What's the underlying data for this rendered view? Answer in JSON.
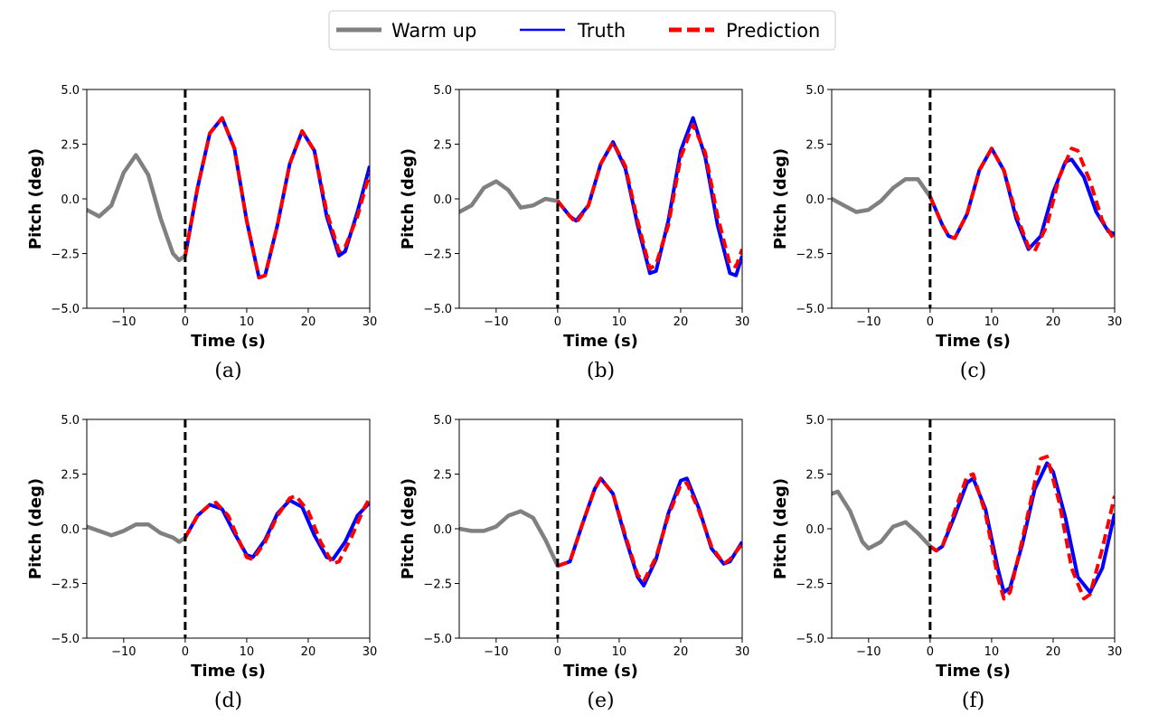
{
  "legend": {
    "entries": [
      {
        "label": "Warm up",
        "color": "#808080",
        "style": "solid-thick"
      },
      {
        "label": "Truth",
        "color": "#0000ff",
        "style": "solid"
      },
      {
        "label": "Prediction",
        "color": "#ff0000",
        "style": "dashed"
      }
    ],
    "placement": "top-center"
  },
  "chart_data": [
    {
      "type": "line",
      "caption": "(a)",
      "xlabel": "Time (s)",
      "ylabel": "Pitch (deg)",
      "xlim": [
        -16,
        30
      ],
      "ylim": [
        -5,
        5
      ],
      "xticks": [
        -10,
        0,
        10,
        20,
        30
      ],
      "yticks": [
        -5.0,
        -2.5,
        0.0,
        2.5,
        5.0
      ],
      "warmup": [
        [
          -16,
          -0.5
        ],
        [
          -14,
          -0.8
        ],
        [
          -12,
          -0.3
        ],
        [
          -10,
          1.2
        ],
        [
          -8,
          2.0
        ],
        [
          -6,
          1.1
        ],
        [
          -4,
          -0.9
        ],
        [
          -2,
          -2.5
        ],
        [
          -1,
          -2.8
        ],
        [
          0,
          -2.6
        ]
      ],
      "truth": [
        [
          0,
          -2.6
        ],
        [
          2,
          0.5
        ],
        [
          4,
          3.0
        ],
        [
          6,
          3.7
        ],
        [
          8,
          2.3
        ],
        [
          10,
          -1.0
        ],
        [
          12,
          -3.6
        ],
        [
          13,
          -3.5
        ],
        [
          15,
          -1.2
        ],
        [
          17,
          1.6
        ],
        [
          19,
          3.1
        ],
        [
          21,
          2.2
        ],
        [
          23,
          -0.8
        ],
        [
          25,
          -2.6
        ],
        [
          26,
          -2.4
        ],
        [
          28,
          -0.6
        ],
        [
          30,
          1.5
        ]
      ],
      "prediction": [
        [
          0,
          -2.6
        ],
        [
          2,
          0.5
        ],
        [
          4,
          3.0
        ],
        [
          6,
          3.7
        ],
        [
          8,
          2.3
        ],
        [
          10,
          -1.0
        ],
        [
          12,
          -3.6
        ],
        [
          13,
          -3.5
        ],
        [
          15,
          -1.2
        ],
        [
          17,
          1.6
        ],
        [
          19,
          3.1
        ],
        [
          21,
          2.2
        ],
        [
          23,
          -0.6
        ],
        [
          25,
          -2.4
        ],
        [
          26,
          -2.2
        ],
        [
          28,
          -0.8
        ],
        [
          30,
          1.2
        ]
      ],
      "divider_x": 0,
      "grid": false
    },
    {
      "type": "line",
      "caption": "(b)",
      "xlabel": "Time (s)",
      "ylabel": "Pitch (deg)",
      "xlim": [
        -16,
        30
      ],
      "ylim": [
        -5,
        5
      ],
      "xticks": [
        -10,
        0,
        10,
        20,
        30
      ],
      "yticks": [
        -5.0,
        -2.5,
        0.0,
        2.5,
        5.0
      ],
      "warmup": [
        [
          -16,
          -0.6
        ],
        [
          -14,
          -0.3
        ],
        [
          -12,
          0.5
        ],
        [
          -10,
          0.8
        ],
        [
          -8,
          0.4
        ],
        [
          -6,
          -0.4
        ],
        [
          -4,
          -0.3
        ],
        [
          -2,
          0.0
        ],
        [
          0,
          -0.1
        ]
      ],
      "truth": [
        [
          0,
          -0.1
        ],
        [
          2,
          -0.8
        ],
        [
          3,
          -1.0
        ],
        [
          5,
          -0.3
        ],
        [
          7,
          1.6
        ],
        [
          9,
          2.6
        ],
        [
          11,
          1.4
        ],
        [
          13,
          -1.2
        ],
        [
          15,
          -3.4
        ],
        [
          16,
          -3.3
        ],
        [
          18,
          -1.0
        ],
        [
          20,
          2.2
        ],
        [
          22,
          3.7
        ],
        [
          24,
          1.9
        ],
        [
          26,
          -1.2
        ],
        [
          28,
          -3.4
        ],
        [
          29,
          -3.5
        ],
        [
          30,
          -2.6
        ]
      ],
      "prediction": [
        [
          0,
          -0.1
        ],
        [
          2,
          -0.8
        ],
        [
          3,
          -1.1
        ],
        [
          5,
          -0.3
        ],
        [
          7,
          1.6
        ],
        [
          9,
          2.6
        ],
        [
          11,
          1.5
        ],
        [
          13,
          -1.0
        ],
        [
          15,
          -3.2
        ],
        [
          16,
          -3.0
        ],
        [
          18,
          -1.2
        ],
        [
          20,
          1.9
        ],
        [
          22,
          3.4
        ],
        [
          24,
          2.1
        ],
        [
          26,
          -0.8
        ],
        [
          28,
          -3.0
        ],
        [
          29,
          -3.1
        ],
        [
          30,
          -2.3
        ]
      ],
      "divider_x": 0,
      "grid": false
    },
    {
      "type": "line",
      "caption": "(c)",
      "xlabel": "Time (s)",
      "ylabel": "Pitch (deg)",
      "xlim": [
        -16,
        30
      ],
      "ylim": [
        -5,
        5
      ],
      "xticks": [
        -10,
        0,
        10,
        20,
        30
      ],
      "yticks": [
        -5.0,
        -2.5,
        0.0,
        2.5,
        5.0
      ],
      "warmup": [
        [
          -16,
          0.0
        ],
        [
          -14,
          -0.3
        ],
        [
          -12,
          -0.6
        ],
        [
          -10,
          -0.5
        ],
        [
          -8,
          -0.1
        ],
        [
          -6,
          0.5
        ],
        [
          -4,
          0.9
        ],
        [
          -2,
          0.9
        ],
        [
          0,
          0.1
        ]
      ],
      "truth": [
        [
          0,
          0.1
        ],
        [
          2,
          -1.2
        ],
        [
          3,
          -1.7
        ],
        [
          4,
          -1.8
        ],
        [
          6,
          -0.7
        ],
        [
          8,
          1.3
        ],
        [
          10,
          2.3
        ],
        [
          12,
          1.3
        ],
        [
          14,
          -0.9
        ],
        [
          16,
          -2.3
        ],
        [
          18,
          -1.7
        ],
        [
          20,
          0.3
        ],
        [
          22,
          1.7
        ],
        [
          23,
          1.8
        ],
        [
          25,
          1.0
        ],
        [
          27,
          -0.6
        ],
        [
          29,
          -1.5
        ],
        [
          30,
          -1.6
        ]
      ],
      "prediction": [
        [
          0,
          0.1
        ],
        [
          2,
          -1.2
        ],
        [
          3,
          -1.7
        ],
        [
          4,
          -1.8
        ],
        [
          6,
          -0.7
        ],
        [
          8,
          1.3
        ],
        [
          10,
          2.3
        ],
        [
          12,
          1.3
        ],
        [
          14,
          -0.7
        ],
        [
          16,
          -2.2
        ],
        [
          17,
          -2.4
        ],
        [
          19,
          -1.2
        ],
        [
          21,
          1.0
        ],
        [
          23,
          2.3
        ],
        [
          24,
          2.2
        ],
        [
          26,
          0.8
        ],
        [
          28,
          -1.0
        ],
        [
          30,
          -1.9
        ]
      ],
      "divider_x": 0,
      "grid": false
    },
    {
      "type": "line",
      "caption": "(d)",
      "xlabel": "Time (s)",
      "ylabel": "Pitch (deg)",
      "xlim": [
        -16,
        30
      ],
      "ylim": [
        -5,
        5
      ],
      "xticks": [
        -10,
        0,
        10,
        20,
        30
      ],
      "yticks": [
        -5.0,
        -2.5,
        0.0,
        2.5,
        5.0
      ],
      "warmup": [
        [
          -16,
          0.1
        ],
        [
          -14,
          -0.1
        ],
        [
          -12,
          -0.3
        ],
        [
          -10,
          -0.1
        ],
        [
          -8,
          0.2
        ],
        [
          -6,
          0.2
        ],
        [
          -4,
          -0.2
        ],
        [
          -2,
          -0.4
        ],
        [
          -1,
          -0.6
        ],
        [
          0,
          -0.4
        ]
      ],
      "truth": [
        [
          0,
          -0.4
        ],
        [
          2,
          0.6
        ],
        [
          4,
          1.1
        ],
        [
          6,
          0.9
        ],
        [
          8,
          -0.2
        ],
        [
          10,
          -1.2
        ],
        [
          11,
          -1.3
        ],
        [
          13,
          -0.5
        ],
        [
          15,
          0.7
        ],
        [
          17,
          1.3
        ],
        [
          19,
          1.0
        ],
        [
          21,
          -0.3
        ],
        [
          23,
          -1.3
        ],
        [
          24,
          -1.4
        ],
        [
          26,
          -0.6
        ],
        [
          28,
          0.6
        ],
        [
          30,
          1.2
        ]
      ],
      "prediction": [
        [
          0,
          -0.4
        ],
        [
          2,
          0.6
        ],
        [
          4,
          1.1
        ],
        [
          5,
          1.2
        ],
        [
          7,
          0.6
        ],
        [
          9,
          -0.7
        ],
        [
          10,
          -1.3
        ],
        [
          11,
          -1.4
        ],
        [
          13,
          -0.6
        ],
        [
          15,
          0.6
        ],
        [
          17,
          1.4
        ],
        [
          18,
          1.5
        ],
        [
          20,
          0.8
        ],
        [
          22,
          -0.6
        ],
        [
          24,
          -1.6
        ],
        [
          25,
          -1.5
        ],
        [
          27,
          -0.4
        ],
        [
          29,
          0.9
        ],
        [
          30,
          1.4
        ]
      ],
      "divider_x": 0,
      "grid": false
    },
    {
      "type": "line",
      "caption": "(e)",
      "xlabel": "Time (s)",
      "ylabel": "Pitch (deg)",
      "xlim": [
        -16,
        30
      ],
      "ylim": [
        -5,
        5
      ],
      "xticks": [
        -10,
        0,
        10,
        20,
        30
      ],
      "yticks": [
        -5.0,
        -2.5,
        0.0,
        2.5,
        5.0
      ],
      "warmup": [
        [
          -16,
          0.0
        ],
        [
          -14,
          -0.1
        ],
        [
          -12,
          -0.1
        ],
        [
          -10,
          0.1
        ],
        [
          -8,
          0.6
        ],
        [
          -6,
          0.8
        ],
        [
          -4,
          0.5
        ],
        [
          -2,
          -0.5
        ],
        [
          0,
          -1.7
        ]
      ],
      "truth": [
        [
          0,
          -1.7
        ],
        [
          2,
          -1.5
        ],
        [
          4,
          0.2
        ],
        [
          6,
          1.8
        ],
        [
          7,
          2.3
        ],
        [
          9,
          1.6
        ],
        [
          11,
          -0.4
        ],
        [
          13,
          -2.2
        ],
        [
          14,
          -2.6
        ],
        [
          16,
          -1.4
        ],
        [
          18,
          0.7
        ],
        [
          20,
          2.2
        ],
        [
          21,
          2.3
        ],
        [
          23,
          0.9
        ],
        [
          25,
          -0.9
        ],
        [
          27,
          -1.6
        ],
        [
          28,
          -1.5
        ],
        [
          30,
          -0.6
        ]
      ],
      "prediction": [
        [
          0,
          -1.7
        ],
        [
          2,
          -1.5
        ],
        [
          4,
          0.2
        ],
        [
          6,
          1.8
        ],
        [
          7,
          2.3
        ],
        [
          9,
          1.6
        ],
        [
          11,
          -0.3
        ],
        [
          13,
          -2.1
        ],
        [
          14,
          -2.4
        ],
        [
          16,
          -1.3
        ],
        [
          18,
          0.6
        ],
        [
          20,
          2.0
        ],
        [
          21,
          2.1
        ],
        [
          23,
          0.8
        ],
        [
          25,
          -0.8
        ],
        [
          27,
          -1.6
        ],
        [
          28,
          -1.4
        ],
        [
          30,
          -0.7
        ]
      ],
      "divider_x": 0,
      "grid": false
    },
    {
      "type": "line",
      "caption": "(f)",
      "xlabel": "Time (s)",
      "ylabel": "Pitch (deg)",
      "xlim": [
        -16,
        30
      ],
      "ylim": [
        -5,
        5
      ],
      "xticks": [
        -10,
        0,
        10,
        20,
        30
      ],
      "yticks": [
        -5.0,
        -2.5,
        0.0,
        2.5,
        5.0
      ],
      "warmup": [
        [
          -16,
          1.6
        ],
        [
          -15,
          1.7
        ],
        [
          -13,
          0.8
        ],
        [
          -11,
          -0.6
        ],
        [
          -10,
          -0.9
        ],
        [
          -8,
          -0.6
        ],
        [
          -6,
          0.1
        ],
        [
          -4,
          0.3
        ],
        [
          -2,
          -0.2
        ],
        [
          0,
          -0.8
        ]
      ],
      "truth": [
        [
          0,
          -0.8
        ],
        [
          1,
          -1.0
        ],
        [
          2,
          -0.8
        ],
        [
          4,
          0.6
        ],
        [
          6,
          2.1
        ],
        [
          7,
          2.3
        ],
        [
          9,
          0.9
        ],
        [
          11,
          -1.8
        ],
        [
          12,
          -2.9
        ],
        [
          13,
          -2.7
        ],
        [
          15,
          -0.7
        ],
        [
          17,
          1.8
        ],
        [
          19,
          3.0
        ],
        [
          20,
          2.6
        ],
        [
          22,
          0.5
        ],
        [
          24,
          -2.2
        ],
        [
          26,
          -2.9
        ],
        [
          28,
          -1.8
        ],
        [
          30,
          0.7
        ]
      ],
      "prediction": [
        [
          0,
          -0.8
        ],
        [
          1,
          -1.0
        ],
        [
          2,
          -0.8
        ],
        [
          4,
          0.8
        ],
        [
          6,
          2.4
        ],
        [
          7,
          2.5
        ],
        [
          9,
          0.7
        ],
        [
          11,
          -2.2
        ],
        [
          12,
          -3.2
        ],
        [
          13,
          -2.9
        ],
        [
          15,
          -0.5
        ],
        [
          17,
          2.1
        ],
        [
          18,
          3.2
        ],
        [
          19,
          3.3
        ],
        [
          21,
          1.2
        ],
        [
          23,
          -1.8
        ],
        [
          25,
          -3.2
        ],
        [
          26,
          -3.0
        ],
        [
          28,
          -0.9
        ],
        [
          30,
          1.5
        ]
      ],
      "divider_x": 0,
      "grid": false
    }
  ]
}
